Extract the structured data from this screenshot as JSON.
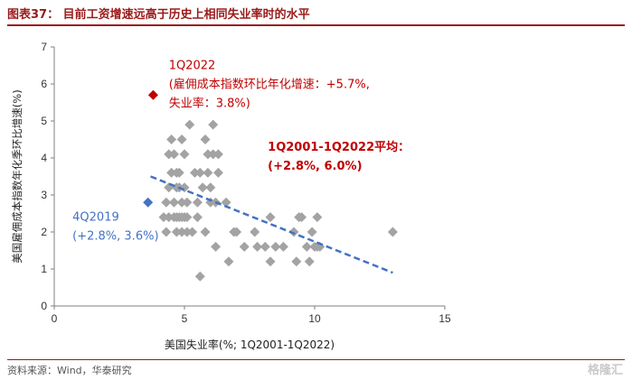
{
  "header": {
    "title": "图表37：  目前工资增速远高于历史上相同失业率时的水平"
  },
  "footer": {
    "source": "资料来源：Wind，华泰研究",
    "watermark": "格隆汇"
  },
  "chart_data": {
    "type": "scatter",
    "xlabel": "美国失业率(%; 1Q2001-1Q2022)",
    "ylabel": "美国雇佣成本指数年化季环比增速(%)",
    "xlim": [
      0,
      15
    ],
    "ylim": [
      0,
      7
    ],
    "xticks": [
      0,
      5,
      10,
      15
    ],
    "yticks": [
      0,
      1,
      2,
      3,
      4,
      5,
      6,
      7
    ],
    "series": [
      {
        "color": "#a3a3a3",
        "points": [
          [
            4.2,
            2.4
          ],
          [
            4.3,
            2.0
          ],
          [
            4.3,
            2.8
          ],
          [
            4.4,
            2.4
          ],
          [
            4.4,
            3.2
          ],
          [
            4.4,
            4.1
          ],
          [
            4.5,
            3.6
          ],
          [
            4.5,
            4.5
          ],
          [
            4.6,
            2.4
          ],
          [
            4.6,
            2.8
          ],
          [
            4.6,
            4.1
          ],
          [
            4.7,
            2.0
          ],
          [
            4.7,
            2.4
          ],
          [
            4.7,
            3.2
          ],
          [
            4.7,
            3.6
          ],
          [
            4.8,
            2.4
          ],
          [
            4.8,
            3.2
          ],
          [
            4.8,
            3.6
          ],
          [
            4.9,
            2.0
          ],
          [
            4.9,
            2.4
          ],
          [
            4.9,
            2.8
          ],
          [
            4.9,
            4.5
          ],
          [
            5.0,
            2.4
          ],
          [
            5.0,
            3.2
          ],
          [
            5.0,
            4.1
          ],
          [
            5.1,
            2.0
          ],
          [
            5.1,
            2.4
          ],
          [
            5.1,
            2.8
          ],
          [
            5.2,
            4.9
          ],
          [
            5.3,
            2.0
          ],
          [
            5.4,
            3.6
          ],
          [
            5.5,
            2.4
          ],
          [
            5.5,
            2.8
          ],
          [
            5.6,
            0.8
          ],
          [
            5.6,
            3.6
          ],
          [
            5.7,
            3.2
          ],
          [
            5.8,
            4.5
          ],
          [
            5.8,
            2.0
          ],
          [
            5.9,
            3.6
          ],
          [
            5.9,
            4.1
          ],
          [
            6.0,
            2.8
          ],
          [
            6.0,
            3.2
          ],
          [
            6.1,
            4.9
          ],
          [
            6.1,
            4.1
          ],
          [
            6.2,
            2.8
          ],
          [
            6.2,
            1.6
          ],
          [
            6.3,
            3.6
          ],
          [
            6.3,
            4.1
          ],
          [
            6.6,
            2.8
          ],
          [
            6.7,
            1.2
          ],
          [
            6.9,
            2.0
          ],
          [
            7.0,
            2.0
          ],
          [
            7.3,
            1.6
          ],
          [
            7.7,
            2.0
          ],
          [
            7.8,
            1.6
          ],
          [
            8.1,
            1.6
          ],
          [
            8.3,
            2.4
          ],
          [
            8.3,
            1.2
          ],
          [
            8.5,
            1.6
          ],
          [
            8.8,
            1.6
          ],
          [
            9.2,
            2.0
          ],
          [
            9.3,
            1.2
          ],
          [
            9.4,
            2.4
          ],
          [
            9.5,
            2.4
          ],
          [
            9.7,
            1.6
          ],
          [
            9.8,
            1.2
          ],
          [
            9.9,
            2.0
          ],
          [
            10.0,
            1.6
          ],
          [
            10.1,
            1.6
          ],
          [
            10.1,
            2.4
          ],
          [
            10.2,
            1.6
          ],
          [
            13.0,
            2.0
          ]
        ]
      },
      {
        "name": "1Q2022",
        "color": "#c00000",
        "points": [
          [
            3.8,
            5.7
          ]
        ]
      },
      {
        "name": "4Q2019",
        "color": "#4472c4",
        "points": [
          [
            3.6,
            2.8
          ]
        ]
      }
    ],
    "trendline": {
      "x": [
        3.7,
        13.0
      ],
      "y": [
        3.5,
        0.9
      ],
      "color": "#4472c4",
      "style": "dashed"
    },
    "annotations": [
      {
        "lines": [
          "1Q2022",
          "(雇佣成本指数环比年化增速：+5.7%,",
          "失业率：3.8%)"
        ],
        "color": "#c00000",
        "bold": false,
        "anchor": [
          4.4,
          6.4
        ]
      },
      {
        "lines": [
          "1Q2001-1Q2022平均：",
          "(+2.8%, 6.0%)"
        ],
        "color": "#c00000",
        "bold": true,
        "anchor": [
          8.2,
          4.2
        ]
      },
      {
        "lines": [
          "4Q2019",
          "(+2.8%, 3.6%)"
        ],
        "color": "#4472c4",
        "bold": false,
        "anchor": [
          0.7,
          2.3
        ]
      }
    ]
  }
}
